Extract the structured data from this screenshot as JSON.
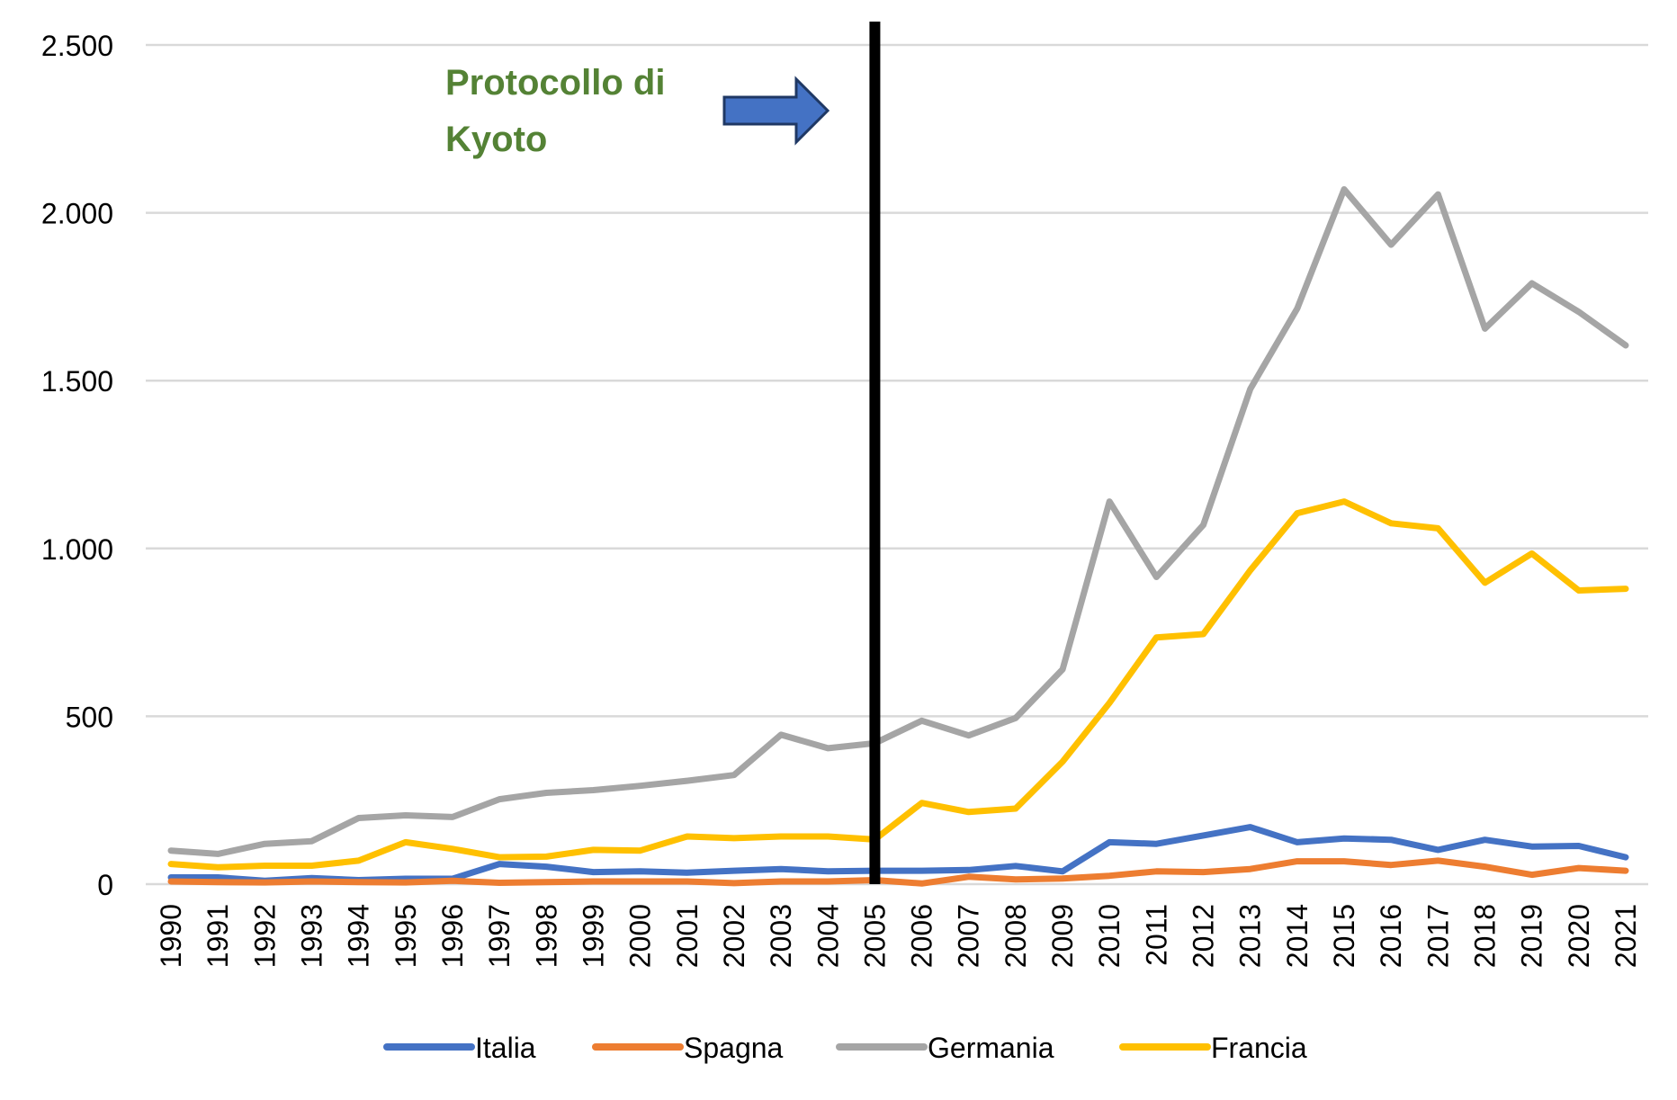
{
  "chart_data": {
    "type": "line",
    "title": "",
    "xlabel": "",
    "ylabel": "",
    "ylim": [
      0,
      2500
    ],
    "yticks": [
      0,
      500,
      1000,
      1500,
      2000,
      2500
    ],
    "ytick_labels": [
      "0",
      "500",
      "1.000",
      "1.500",
      "2.000",
      "2.500"
    ],
    "grid": true,
    "legend": "bottom",
    "categories": [
      "1990",
      "1991",
      "1992",
      "1993",
      "1994",
      "1995",
      "1996",
      "1997",
      "1998",
      "1999",
      "2000",
      "2001",
      "2002",
      "2003",
      "2004",
      "2005",
      "2006",
      "2007",
      "2008",
      "2009",
      "2010",
      "2011",
      "2012",
      "2013",
      "2014",
      "2015",
      "2016",
      "2017",
      "2018",
      "2019",
      "2020",
      "2021"
    ],
    "series": [
      {
        "name": "Italia",
        "color": "#4472C4",
        "values": [
          20,
          20,
          10,
          18,
          12,
          16,
          16,
          60,
          52,
          36,
          38,
          34,
          40,
          45,
          38,
          40,
          40,
          42,
          54,
          38,
          125,
          120,
          145,
          170,
          125,
          136,
          132,
          102,
          132,
          112,
          114,
          80
        ]
      },
      {
        "name": "Spagna",
        "color": "#ED7D31",
        "values": [
          8,
          6,
          5,
          8,
          6,
          5,
          10,
          4,
          6,
          8,
          8,
          8,
          3,
          8,
          8,
          12,
          2,
          22,
          14,
          17,
          25,
          38,
          36,
          45,
          68,
          68,
          57,
          70,
          52,
          28,
          48,
          40
        ]
      },
      {
        "name": "Germania",
        "color": "#A5A5A5",
        "values": [
          100,
          90,
          120,
          128,
          197,
          205,
          200,
          253,
          272,
          280,
          293,
          308,
          325,
          445,
          405,
          420,
          487,
          443,
          495,
          640,
          1140,
          915,
          1070,
          1475,
          1715,
          2070,
          1905,
          2055,
          1655,
          1790,
          1705,
          1605
        ]
      },
      {
        "name": "Francia",
        "color": "#FFC000",
        "values": [
          60,
          50,
          55,
          55,
          70,
          125,
          105,
          80,
          82,
          102,
          100,
          142,
          137,
          142,
          142,
          133,
          242,
          215,
          225,
          365,
          540,
          735,
          745,
          935,
          1105,
          1140,
          1075,
          1060,
          898,
          985,
          875,
          880
        ]
      }
    ],
    "annotation": {
      "text_line1": "Protocollo di",
      "text_line2": "Kyoto",
      "marker_year": "2005",
      "text_color": "#548235",
      "arrow_color": "#4472C4"
    }
  }
}
